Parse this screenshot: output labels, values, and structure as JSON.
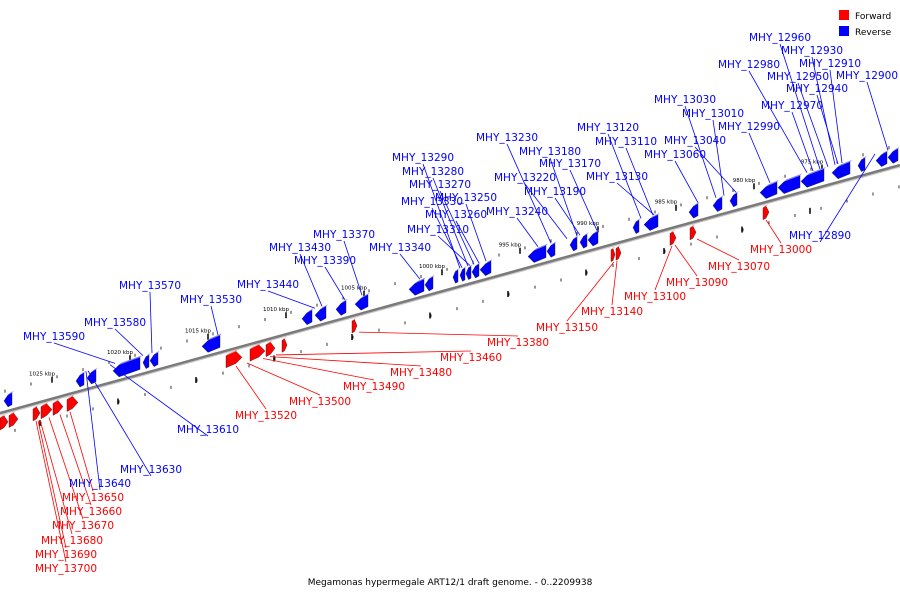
{
  "caption": "Megamonas hypermegale ART12/1 draft genome. - 0..2209938",
  "legend": [
    {
      "label": "Forward",
      "color": "#ff0000"
    },
    {
      "label": "Reverse",
      "color": "#0000ff"
    }
  ],
  "colors": {
    "forward": "#ff0000",
    "reverse": "#0000ff",
    "backbone": "#7a7a7a"
  },
  "ruler": [
    "1025 kbp",
    "1020 kbp",
    "1015 kbp",
    "1010 kbp",
    "1005 kbp",
    "1000 kbp",
    "995 kbp",
    "990 kbp",
    "985 kbp",
    "980 kbp",
    "975 kbp"
  ],
  "reverse_labels": [
    "MHY_12960",
    "MHY_12930",
    "MHY_12980",
    "MHY_12910",
    "MHY_12950",
    "MHY_12900",
    "MHY_12940",
    "MHY_12970",
    "MHY_13030",
    "MHY_13010",
    "MHY_12990",
    "MHY_13120",
    "MHY_13040",
    "MHY_13110",
    "MHY_13060",
    "MHY_13230",
    "MHY_13180",
    "MHY_13170",
    "MHY_13290",
    "MHY_13280",
    "MHY_13220",
    "MHY_13130",
    "MHY_13270",
    "MHY_13190",
    "MHY_13330",
    "MHY_13250",
    "MHY_13260",
    "MHY_13240",
    "MHY_13310",
    "MHY_13370",
    "MHY_13430",
    "MHY_13340",
    "MHY_13390",
    "MHY_13440",
    "MHY_13570",
    "MHY_13530",
    "MHY_13580",
    "MHY_13590",
    "MHY_12890",
    "MHY_13610",
    "MHY_13630",
    "MHY_13640"
  ],
  "forward_labels": [
    "MHY_13000",
    "MHY_13070",
    "MHY_13090",
    "MHY_13100",
    "MHY_13140",
    "MHY_13150",
    "MHY_13380",
    "MHY_13460",
    "MHY_13480",
    "MHY_13490",
    "MHY_13500",
    "MHY_13520",
    "MHY_13650",
    "MHY_13660",
    "MHY_13670",
    "MHY_13680",
    "MHY_13690",
    "MHY_13700"
  ]
}
